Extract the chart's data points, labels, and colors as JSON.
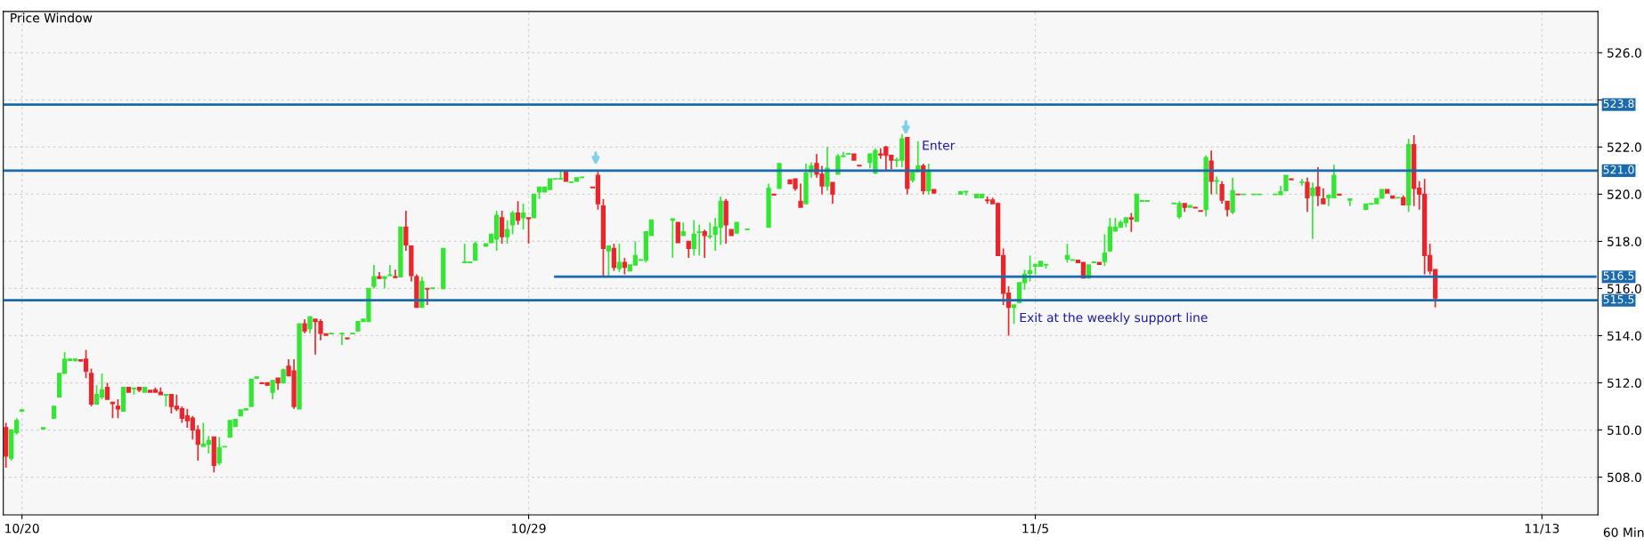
{
  "chart_data": {
    "type": "candlestick",
    "title": "Price Window",
    "categories": [
      null,
      null,
      null,
      "10/20",
      null,
      null,
      null,
      null,
      null,
      null,
      null,
      null,
      null,
      null,
      null,
      null,
      null,
      null,
      null,
      null,
      null,
      null,
      null,
      null,
      null,
      null,
      null,
      null,
      null,
      null,
      null,
      null,
      null,
      null,
      null,
      null,
      null,
      null,
      null,
      null,
      null,
      null,
      null,
      null,
      null,
      null,
      null,
      null,
      null,
      null,
      null,
      null,
      null,
      null,
      null,
      null,
      null,
      null,
      null,
      null,
      null,
      null,
      null,
      null,
      null,
      null,
      null,
      null,
      null,
      null,
      null,
      null,
      null,
      null,
      null,
      null,
      null,
      null,
      null,
      null,
      null,
      null,
      null,
      null,
      null,
      null,
      null,
      null,
      null,
      null,
      null,
      null,
      null,
      null,
      null,
      null,
      null,
      null,
      "10/29",
      null,
      null,
      null,
      null,
      null,
      null,
      null,
      null,
      null,
      null,
      null,
      null,
      null,
      null,
      null,
      null,
      null,
      null,
      null,
      null,
      null,
      null,
      null,
      null,
      null,
      null,
      null,
      null,
      null,
      null,
      null,
      null,
      null,
      null,
      null,
      null,
      null,
      null,
      null,
      null,
      null,
      null,
      null,
      null,
      null,
      null,
      null,
      null,
      null,
      null,
      null,
      null,
      null,
      null,
      null,
      null,
      null,
      null,
      null,
      null,
      null,
      null,
      null,
      null,
      null,
      null,
      null,
      null,
      null,
      null,
      null,
      null,
      null,
      null,
      null,
      null,
      null,
      null,
      null,
      null,
      null,
      null,
      null,
      null,
      null,
      null,
      null,
      null,
      null,
      null,
      null,
      null,
      null,
      null,
      "11/5",
      null,
      null,
      null,
      null,
      null,
      null,
      null,
      null,
      null,
      null,
      null,
      null,
      null,
      null,
      null,
      null,
      null,
      null,
      null,
      null,
      null,
      null,
      null,
      null,
      null,
      null,
      null,
      null,
      null,
      null,
      null,
      null,
      null,
      null,
      null,
      null,
      null,
      null,
      null,
      null,
      null,
      null,
      null,
      null,
      null,
      null,
      null,
      null,
      null,
      null,
      null,
      null,
      null,
      null,
      null,
      null,
      null,
      null,
      null,
      null,
      null,
      null,
      null,
      null,
      null,
      null,
      null,
      null,
      null,
      null,
      null,
      null,
      null,
      null,
      null,
      null,
      null,
      null,
      null,
      null,
      null,
      null,
      null,
      null,
      null,
      null,
      null,
      null,
      null,
      null,
      null,
      null,
      null,
      null,
      "11/13",
      null,
      null,
      null,
      null,
      null,
      null,
      null,
      null,
      null,
      null
    ],
    "ohlc": [
      [
        510.1,
        510.3,
        508.4,
        508.9
      ],
      [
        508.8,
        510.0,
        508.7,
        510.0
      ],
      [
        509.9,
        510.5,
        509.8,
        510.4
      ],
      [
        510.8,
        510.85,
        510.8,
        510.85
      ],
      null,
      null,
      null,
      [
        510.05,
        510.1,
        510.05,
        510.1
      ],
      null,
      [
        510.5,
        511.0,
        510.5,
        511.0
      ],
      [
        511.4,
        512.4,
        511.4,
        512.4
      ],
      [
        512.4,
        513.3,
        512.4,
        513.0
      ],
      [
        512.95,
        513.05,
        512.95,
        513.0
      ],
      [
        512.95,
        513.05,
        512.9,
        513.0
      ],
      [
        512.97,
        513.0,
        512.9,
        512.93
      ],
      [
        513.0,
        513.4,
        512.2,
        512.5
      ],
      [
        512.4,
        512.6,
        511.0,
        511.1
      ],
      [
        511.1,
        511.9,
        511.1,
        511.5
      ],
      [
        511.4,
        512.4,
        511.3,
        511.7
      ],
      [
        511.8,
        512.0,
        511.3,
        511.3
      ],
      [
        511.17,
        511.2,
        510.5,
        511.12
      ],
      [
        511.0,
        511.3,
        510.5,
        510.9
      ],
      [
        510.8,
        511.8,
        510.8,
        511.8
      ],
      [
        511.8,
        511.8,
        511.6,
        511.6
      ],
      [
        511.75,
        511.78,
        511.5,
        511.78
      ],
      [
        511.8,
        511.8,
        511.6,
        511.7
      ],
      [
        511.6,
        511.8,
        511.6,
        511.8
      ],
      [
        511.68,
        511.68,
        511.6,
        511.6
      ],
      [
        511.7,
        511.8,
        511.6,
        511.6
      ],
      [
        511.6,
        511.8,
        511.5,
        511.5
      ],
      [
        511.48,
        511.5,
        511.0,
        511.5
      ],
      [
        511.5,
        511.5,
        510.7,
        511.0
      ],
      [
        511.0,
        511.5,
        510.8,
        510.9
      ],
      [
        510.9,
        511.0,
        510.3,
        510.5
      ],
      [
        510.6,
        510.9,
        510.1,
        510.4
      ],
      [
        510.5,
        510.6,
        509.6,
        510.0
      ],
      [
        510.0,
        510.2,
        508.7,
        509.4
      ],
      [
        509.3,
        510.3,
        509.3,
        509.4
      ],
      [
        509.4,
        509.75,
        509.0,
        509.55
      ],
      [
        509.7,
        509.7,
        508.2,
        508.5
      ],
      [
        508.6,
        509.7,
        508.5,
        509.25
      ],
      [
        509.28,
        509.3,
        509.28,
        509.3
      ],
      [
        509.7,
        510.4,
        509.7,
        510.4
      ],
      [
        510.15,
        510.45,
        510.15,
        510.45
      ],
      [
        510.6,
        510.85,
        510.6,
        510.85
      ],
      [
        510.85,
        510.9,
        510.85,
        510.9
      ],
      [
        511.0,
        512.15,
        511.0,
        512.15
      ],
      [
        512.2,
        512.25,
        512.2,
        512.25
      ],
      [
        512.0,
        512.0,
        511.95,
        511.97
      ],
      [
        512.0,
        512.0,
        511.9,
        511.9
      ],
      [
        511.6,
        512.1,
        511.3,
        512.1
      ],
      [
        512.2,
        512.2,
        511.7,
        512.0
      ],
      [
        512.0,
        512.6,
        512.0,
        512.55
      ],
      [
        512.7,
        513.0,
        512.3,
        512.3
      ],
      [
        512.5,
        513.0,
        510.9,
        511.0
      ],
      [
        510.9,
        514.5,
        510.9,
        514.5
      ],
      [
        514.5,
        514.7,
        514.1,
        514.2
      ],
      [
        514.3,
        514.8,
        514.1,
        514.8
      ],
      [
        514.7,
        514.7,
        513.2,
        514.6
      ],
      [
        514.6,
        514.7,
        513.8,
        514.1
      ],
      [
        514.08,
        514.08,
        514.0,
        514.02
      ],
      [
        514.08,
        514.1,
        514.08,
        514.1
      ],
      null,
      [
        514.08,
        514.1,
        513.6,
        514.1
      ],
      [
        513.9,
        513.9,
        513.85,
        513.87
      ],
      [
        514.08,
        514.1,
        514.08,
        514.1
      ],
      [
        514.2,
        514.6,
        514.2,
        514.6
      ],
      [
        514.6,
        514.7,
        514.6,
        514.7
      ],
      [
        514.6,
        516.0,
        514.6,
        516.0
      ],
      [
        516.1,
        517.0,
        516.0,
        516.5
      ],
      [
        516.5,
        516.7,
        516.43,
        516.43
      ],
      [
        516.43,
        516.5,
        516.0,
        516.5
      ],
      [
        516.55,
        517.0,
        516.55,
        516.57
      ],
      [
        516.5,
        516.8,
        516.45,
        516.47
      ],
      [
        516.5,
        518.6,
        516.5,
        518.6
      ],
      [
        518.6,
        519.3,
        517.6,
        517.85
      ],
      [
        517.8,
        517.8,
        516.3,
        516.55
      ],
      [
        516.5,
        516.6,
        515.2,
        515.2
      ],
      [
        515.2,
        516.5,
        515.2,
        516.3
      ],
      [
        516.0,
        516.0,
        515.3,
        515.98
      ],
      [
        516.0,
        516.02,
        516.0,
        516.02
      ],
      null,
      [
        516.0,
        517.7,
        516.0,
        517.7
      ],
      null,
      null,
      null,
      [
        517.1,
        517.9,
        517.1,
        517.12
      ],
      [
        517.1,
        517.12,
        517.1,
        517.12
      ],
      [
        517.2,
        518.0,
        517.2,
        517.9
      ],
      null,
      [
        517.8,
        517.9,
        517.8,
        517.9
      ],
      [
        517.95,
        518.3,
        517.95,
        518.3
      ],
      [
        518.1,
        519.3,
        517.6,
        519.1
      ],
      [
        519.0,
        519.3,
        517.9,
        518.2
      ],
      [
        518.2,
        518.9,
        517.9,
        518.5
      ],
      [
        518.7,
        519.3,
        518.3,
        519.2
      ],
      [
        519.2,
        519.7,
        518.7,
        518.9
      ],
      [
        519.0,
        519.6,
        518.5,
        519.2
      ],
      [
        519.0,
        519.0,
        517.9,
        518.97
      ],
      [
        519.0,
        520.0,
        519.0,
        520.0
      ],
      [
        520.1,
        520.3,
        519.8,
        520.3
      ],
      [
        520.1,
        520.3,
        520.1,
        520.3
      ],
      [
        520.2,
        520.65,
        520.2,
        520.65
      ],
      [
        520.64,
        520.66,
        520.64,
        520.66
      ],
      [
        520.64,
        521.0,
        520.64,
        520.66
      ],
      [
        521.0,
        521.0,
        520.55,
        520.55
      ],
      [
        520.5,
        520.52,
        520.5,
        520.52
      ],
      [
        520.55,
        520.7,
        520.55,
        520.7
      ],
      [
        520.7,
        520.72,
        520.7,
        520.72
      ],
      null,
      [
        520.3,
        520.3,
        520.27,
        520.28
      ],
      [
        520.8,
        520.95,
        519.35,
        519.6
      ],
      [
        519.5,
        519.8,
        516.5,
        517.7
      ],
      [
        517.6,
        517.8,
        516.5,
        517.8
      ],
      [
        517.7,
        517.9,
        516.75,
        516.9
      ],
      [
        516.85,
        517.9,
        516.7,
        517.1
      ],
      [
        517.1,
        517.3,
        516.6,
        516.9
      ],
      [
        516.75,
        517.0,
        516.75,
        517.0
      ],
      [
        517.0,
        518.0,
        517.0,
        517.4
      ],
      [
        517.2,
        517.22,
        517.2,
        517.22
      ],
      [
        517.2,
        518.4,
        517.1,
        518.4
      ],
      [
        518.25,
        518.9,
        518.25,
        518.9
      ],
      null,
      null,
      null,
      [
        518.9,
        518.95,
        517.3,
        518.95
      ],
      [
        518.8,
        518.8,
        517.95,
        517.95
      ],
      [
        518.25,
        518.8,
        518.25,
        518.4
      ],
      [
        518.0,
        518.0,
        517.3,
        517.7
      ],
      [
        517.7,
        518.9,
        517.4,
        518.3
      ],
      [
        518.38,
        518.7,
        517.4,
        518.4
      ],
      [
        518.4,
        518.5,
        517.3,
        518.25
      ],
      [
        518.2,
        518.8,
        518.1,
        518.22
      ],
      [
        518.3,
        519.0,
        517.6,
        518.6
      ],
      [
        518.6,
        519.9,
        517.85,
        519.7
      ],
      [
        519.7,
        519.8,
        517.9,
        518.7
      ],
      [
        518.5,
        518.5,
        518.25,
        518.25
      ],
      [
        518.35,
        518.8,
        518.35,
        518.8
      ],
      null,
      [
        518.5,
        518.52,
        518.5,
        518.52
      ],
      null,
      null,
      null,
      [
        518.6,
        520.45,
        518.6,
        520.25
      ],
      [
        520.0,
        520.0,
        519.95,
        519.97
      ],
      [
        520.25,
        521.3,
        520.25,
        521.3
      ],
      null,
      [
        520.6,
        520.6,
        520.45,
        520.45
      ],
      [
        520.65,
        520.65,
        520.15,
        520.25
      ],
      [
        519.7,
        520.45,
        519.45,
        519.45
      ],
      [
        519.6,
        521.3,
        519.6,
        520.9
      ],
      [
        520.95,
        521.35,
        520.7,
        521.2
      ],
      [
        521.3,
        521.7,
        520.7,
        520.85
      ],
      [
        520.85,
        521.2,
        520.0,
        520.35
      ],
      [
        520.35,
        522.0,
        520.15,
        521.1
      ],
      [
        520.5,
        520.5,
        519.6,
        520.0
      ],
      [
        520.85,
        521.7,
        520.85,
        521.6
      ],
      [
        521.6,
        521.8,
        521.6,
        521.62
      ],
      [
        521.7,
        521.72,
        521.7,
        521.72
      ],
      [
        521.7,
        521.7,
        521.45,
        521.45
      ],
      [
        521.22,
        521.22,
        521.2,
        521.2
      ],
      null,
      [
        521.35,
        521.7,
        521.1,
        521.7
      ],
      [
        520.9,
        521.95,
        520.85,
        521.85
      ],
      [
        521.7,
        521.95,
        521.5,
        521.66
      ],
      [
        522.0,
        522.05,
        521.0,
        521.65
      ],
      [
        521.65,
        521.65,
        521.05,
        521.45
      ],
      [
        521.44,
        521.55,
        521.15,
        521.46
      ],
      [
        521.45,
        522.55,
        521.15,
        522.35
      ],
      [
        522.4,
        522.4,
        520.0,
        520.25
      ],
      [
        520.6,
        520.95,
        520.5,
        520.95
      ],
      [
        520.95,
        522.25,
        520.95,
        521.2
      ],
      [
        521.2,
        521.3,
        520.0,
        520.15
      ],
      [
        520.15,
        521.3,
        520.0,
        520.95
      ],
      [
        520.2,
        520.2,
        520.05,
        520.05
      ],
      null,
      null,
      null,
      null,
      [
        520.0,
        520.1,
        520.0,
        520.1
      ],
      [
        520.1,
        520.12,
        519.95,
        520.12
      ],
      null,
      [
        519.85,
        520.0,
        519.85,
        520.0
      ],
      [
        519.85,
        520.0,
        519.85,
        520.0
      ],
      [
        519.75,
        519.9,
        519.6,
        519.73
      ],
      [
        519.75,
        519.85,
        519.6,
        519.6
      ],
      [
        519.6,
        519.65,
        517.4,
        517.4
      ],
      [
        517.4,
        517.7,
        515.3,
        515.8
      ],
      [
        515.8,
        516.1,
        514.0,
        515.2
      ],
      [
        515.2,
        515.3,
        514.5,
        515.3
      ],
      [
        515.4,
        516.25,
        515.4,
        516.25
      ],
      [
        516.25,
        516.8,
        515.95,
        516.6
      ],
      [
        516.65,
        517.4,
        516.3,
        516.75
      ],
      [
        516.95,
        517.02,
        516.6,
        517.02
      ],
      [
        516.95,
        517.15,
        516.95,
        517.15
      ],
      [
        517.0,
        517.02,
        516.85,
        517.02
      ],
      null,
      null,
      null,
      [
        517.25,
        517.9,
        517.1,
        517.4
      ],
      [
        517.2,
        517.22,
        517.2,
        517.22
      ],
      [
        517.2,
        517.2,
        517.1,
        517.1
      ],
      [
        517.1,
        517.1,
        516.45,
        516.45
      ],
      [
        516.45,
        517.0,
        516.45,
        517.0
      ],
      [
        517.1,
        517.12,
        517.1,
        517.12
      ],
      [
        517.1,
        517.1,
        517.0,
        517.02
      ],
      [
        517.15,
        518.3,
        516.95,
        517.5
      ],
      [
        517.6,
        519.0,
        517.55,
        518.6
      ],
      [
        518.45,
        519.0,
        518.4,
        518.6
      ],
      [
        518.6,
        518.9,
        518.6,
        518.8
      ],
      [
        518.8,
        519.0,
        518.6,
        519.0
      ],
      [
        519.0,
        519.2,
        518.4,
        518.95
      ],
      [
        518.85,
        520.0,
        518.85,
        520.0
      ],
      [
        519.7,
        519.72,
        519.7,
        519.72
      ],
      [
        519.7,
        519.72,
        519.7,
        519.72
      ],
      null,
      null,
      null,
      null,
      [
        519.6,
        519.62,
        519.6,
        519.62
      ],
      [
        519.05,
        519.7,
        518.95,
        519.6
      ],
      [
        519.6,
        519.6,
        519.25,
        519.45
      ],
      [
        519.45,
        519.52,
        519.45,
        519.52
      ],
      [
        519.44,
        519.44,
        519.42,
        519.42
      ],
      [
        519.3,
        519.3,
        519.28,
        519.28
      ],
      [
        519.35,
        521.65,
        519.05,
        521.55
      ],
      [
        521.4,
        521.85,
        520.0,
        520.55
      ],
      [
        520.55,
        520.75,
        520.0,
        520.57
      ],
      [
        520.4,
        520.55,
        519.6,
        519.75
      ],
      [
        519.7,
        519.7,
        519.05,
        519.35
      ],
      [
        519.25,
        520.7,
        519.15,
        520.15
      ],
      [
        520.0,
        520.0,
        519.98,
        519.98
      ],
      [
        519.98,
        520.0,
        519.98,
        520.0
      ],
      null,
      [
        519.98,
        520.0,
        519.98,
        520.0
      ],
      [
        519.98,
        520.0,
        519.98,
        520.0
      ],
      null,
      null,
      [
        519.98,
        520.0,
        519.98,
        520.0
      ],
      [
        519.98,
        520.35,
        519.98,
        520.1
      ],
      [
        520.15,
        520.8,
        520.15,
        520.8
      ],
      [
        520.65,
        520.65,
        520.62,
        520.62
      ],
      null,
      [
        520.5,
        520.65,
        520.35,
        520.52
      ],
      [
        520.5,
        520.7,
        519.25,
        519.85
      ],
      [
        519.95,
        520.5,
        518.1,
        520.25
      ],
      [
        520.3,
        521.15,
        519.5,
        519.95
      ],
      [
        519.8,
        520.25,
        519.6,
        519.6
      ],
      [
        519.85,
        519.95,
        519.5,
        519.95
      ],
      [
        519.85,
        521.25,
        519.85,
        520.8
      ],
      [
        520.0,
        520.0,
        519.97,
        519.97
      ],
      null,
      [
        519.75,
        519.8,
        519.5,
        519.8
      ],
      null,
      null,
      [
        519.35,
        519.6,
        519.35,
        519.58
      ],
      [
        519.58,
        519.6,
        519.58,
        519.6
      ],
      [
        519.6,
        519.82,
        519.6,
        519.82
      ],
      [
        519.83,
        520.2,
        519.83,
        520.2
      ],
      [
        520.2,
        520.2,
        520.05,
        520.05
      ],
      [
        519.92,
        519.92,
        519.83,
        519.83
      ],
      [
        519.84,
        519.86,
        519.84,
        519.86
      ],
      [
        519.85,
        519.95,
        519.55,
        519.55
      ],
      [
        519.55,
        522.35,
        519.25,
        522.1
      ],
      [
        522.1,
        522.5,
        519.5,
        520.25
      ],
      [
        520.25,
        520.55,
        519.35,
        520.0
      ],
      [
        520.0,
        520.65,
        516.6,
        517.4
      ],
      [
        517.4,
        517.9,
        516.6,
        516.75
      ],
      [
        516.8,
        516.8,
        515.2,
        515.6
      ],
      null,
      null,
      null,
      null,
      null,
      null,
      null,
      null,
      null,
      null,
      null,
      null,
      null,
      null,
      null,
      null,
      null,
      null,
      null,
      null,
      null,
      null,
      null,
      null,
      null,
      null,
      null,
      null,
      null,
      null
    ],
    "series": [
      {
        "type": "line",
        "color": "#1a6aad",
        "values": [
          null,
          null,
          null,
          null,
          null,
          null,
          null,
          null,
          null,
          null,
          null,
          null,
          null,
          null,
          null,
          null,
          null,
          null,
          null,
          null,
          null,
          null,
          null,
          null,
          null,
          null,
          null,
          null,
          null,
          null,
          null,
          null,
          null,
          null,
          null,
          null,
          null,
          null,
          null,
          null,
          null,
          null,
          null,
          null,
          null,
          null,
          null,
          null,
          null,
          null,
          null,
          null,
          null,
          null,
          null,
          null,
          null,
          null,
          null,
          null,
          null,
          null,
          null,
          null,
          null,
          null,
          null,
          null,
          null,
          null,
          null,
          null,
          null,
          null,
          null,
          null,
          null,
          null,
          null,
          null,
          null,
          null,
          null,
          null,
          null,
          null,
          null,
          null,
          null,
          null,
          null,
          null,
          null,
          null,
          null,
          null,
          null,
          null,
          null,
          null,
          null,
          null,
          null,
          516.5,
          516.5,
          516.5,
          516.5,
          516.5,
          516.5,
          516.5,
          516.5,
          516.5,
          516.5,
          516.5,
          516.5,
          516.5,
          516.5,
          516.5,
          516.5,
          516.5,
          516.5,
          516.5,
          516.5,
          516.5,
          516.5,
          516.5,
          516.5,
          516.5,
          516.5,
          516.5,
          516.5,
          516.5,
          516.5,
          516.5,
          516.5,
          516.5,
          516.5,
          516.5,
          516.5,
          516.5,
          516.5,
          516.5,
          516.5,
          516.5,
          516.5,
          516.5,
          516.5,
          516.5,
          516.5,
          516.5,
          516.5,
          516.5,
          516.5,
          516.5,
          516.5,
          516.5,
          516.5,
          516.5,
          516.5,
          516.5,
          516.5,
          516.5,
          516.5,
          516.5,
          516.5,
          516.5,
          516.5,
          516.5,
          516.5,
          516.5,
          516.5,
          516.5,
          516.5,
          516.5,
          516.5,
          516.5,
          516.5,
          516.5,
          516.5,
          516.5,
          516.5,
          516.5,
          516.5,
          516.5,
          516.5,
          516.5,
          516.5,
          516.5,
          516.5,
          516.5,
          516.5,
          516.5,
          516.5,
          516.5,
          516.5,
          516.5,
          516.5,
          516.5,
          516.5,
          516.5,
          516.5,
          516.5,
          516.5,
          516.5,
          516.5,
          516.5,
          516.5,
          516.5,
          516.5,
          516.5,
          516.5,
          516.5,
          516.5,
          516.5,
          516.5,
          516.5,
          516.5,
          516.5,
          516.5,
          516.5,
          516.5,
          516.5,
          516.5,
          516.5,
          516.5,
          516.5,
          516.5,
          516.5,
          516.5,
          516.5,
          516.5,
          516.5,
          516.5,
          516.5,
          516.5,
          516.5,
          516.5,
          516.5,
          516.5,
          516.5,
          516.5,
          516.5,
          516.5,
          516.5,
          516.5,
          516.5,
          516.5,
          516.5,
          516.5,
          516.5,
          516.5,
          516.5,
          516.5,
          516.5,
          516.5,
          516.5,
          516.5,
          516.5,
          516.5,
          516.5,
          516.5,
          516.5,
          516.5,
          516.5,
          516.5,
          516.5,
          516.5,
          516.5,
          516.5,
          516.5,
          516.5,
          516.5,
          516.5,
          516.5,
          516.5,
          516.5,
          516.5,
          516.5,
          516.5,
          516.5,
          516.5,
          516.5,
          516.5,
          516.5,
          516.5,
          516.5,
          516.5,
          516.5,
          516.5,
          516.5,
          516.5,
          516.5,
          516.5,
          516.5,
          516.5,
          516.5,
          516.5,
          516.5,
          516.5
        ],
        "value_labels": [
          null,
          null,
          null,
          null,
          null,
          null,
          null,
          null,
          null,
          null,
          null,
          null,
          null,
          null,
          null,
          null,
          null,
          null,
          null,
          null,
          null,
          null,
          null,
          null,
          null,
          null,
          null,
          null,
          null,
          null,
          null,
          null,
          null,
          null,
          null,
          null,
          null,
          null,
          null,
          null,
          null,
          null,
          null,
          null,
          null,
          null,
          null,
          null,
          null,
          null,
          null,
          null,
          null,
          null,
          null,
          null,
          null,
          null,
          null,
          null,
          null,
          null,
          null,
          null,
          null,
          null,
          null,
          null,
          null,
          null,
          null,
          null,
          null,
          null,
          null,
          null,
          null,
          null,
          null,
          null,
          null,
          null,
          null,
          null,
          null,
          null,
          null,
          null,
          null,
          null,
          null,
          null,
          null,
          null,
          null,
          null,
          null,
          null,
          null,
          null,
          null,
          null,
          null,
          null,
          null,
          null,
          null,
          null,
          null,
          null,
          null,
          null,
          null,
          null,
          null,
          null,
          null,
          null,
          null,
          null,
          null,
          null,
          null,
          null,
          null,
          null,
          null,
          null,
          null,
          null,
          null,
          null,
          null,
          null,
          null,
          null,
          null,
          null,
          null,
          null,
          null,
          null,
          null,
          null,
          null,
          null,
          null,
          null,
          null,
          null,
          null,
          null,
          null,
          null,
          null,
          null,
          null,
          null,
          null,
          null,
          null,
          null,
          null,
          null,
          null,
          null,
          null,
          null,
          null,
          null,
          null,
          null,
          null,
          null,
          null,
          null,
          null,
          null,
          null,
          null,
          null,
          null,
          null,
          null,
          null,
          null,
          null,
          null,
          null,
          null,
          null,
          null,
          null,
          null,
          null,
          null,
          null,
          null,
          null,
          null,
          null,
          null,
          null,
          null,
          null,
          null,
          null,
          null,
          null,
          null,
          null,
          null,
          null,
          null,
          null,
          null,
          null,
          null,
          null,
          null,
          null,
          null,
          null,
          null,
          null,
          null,
          null,
          null,
          null,
          null,
          null,
          null,
          null,
          null,
          null,
          null,
          null,
          null,
          null,
          null,
          null,
          null,
          null,
          null,
          null,
          null,
          null,
          null,
          null,
          null,
          null,
          null,
          null,
          null,
          null,
          null,
          null,
          null,
          null,
          null,
          null,
          null,
          null,
          null,
          null,
          null,
          null,
          null,
          null,
          null,
          null,
          null,
          null,
          null,
          null,
          null,
          null,
          null,
          null,
          null,
          null,
          null,
          null,
          null,
          null,
          null,
          null,
          null,
          null,
          null,
          null,
          null,
          null,
          null,
          null,
          null,
          null,
          null,
          "516.5"
        ]
      }
    ],
    "ref_lines": [
      {
        "axis": "y",
        "value": 523.8,
        "label": "523.8",
        "color": "#1a6aad"
      },
      {
        "axis": "y",
        "value": 521.0,
        "label": "521.0",
        "color": "#1a6aad"
      },
      {
        "axis": "y",
        "value": 515.5,
        "label": "515.5",
        "color": "#1a6aad"
      }
    ],
    "annotations": [
      "Enter",
      "Exit at the weekly support line",
      "60 Min"
    ],
    "ylim": [
      506.4,
      527.75
    ],
    "yticks": [
      {
        "value": 508,
        "label": "508.0"
      },
      {
        "value": 510,
        "label": "510.0"
      },
      {
        "value": 512,
        "label": "512.0"
      },
      {
        "value": 514,
        "label": "514.0"
      },
      {
        "value": 516,
        "label": "516.0"
      },
      {
        "value": 518,
        "label": "518.0"
      },
      {
        "value": 520,
        "label": "520.0"
      },
      {
        "value": 522,
        "label": "522.0"
      },
      {
        "value": 524,
        "label": null
      },
      {
        "value": 526,
        "label": "526.0"
      }
    ],
    "grid": true
  }
}
